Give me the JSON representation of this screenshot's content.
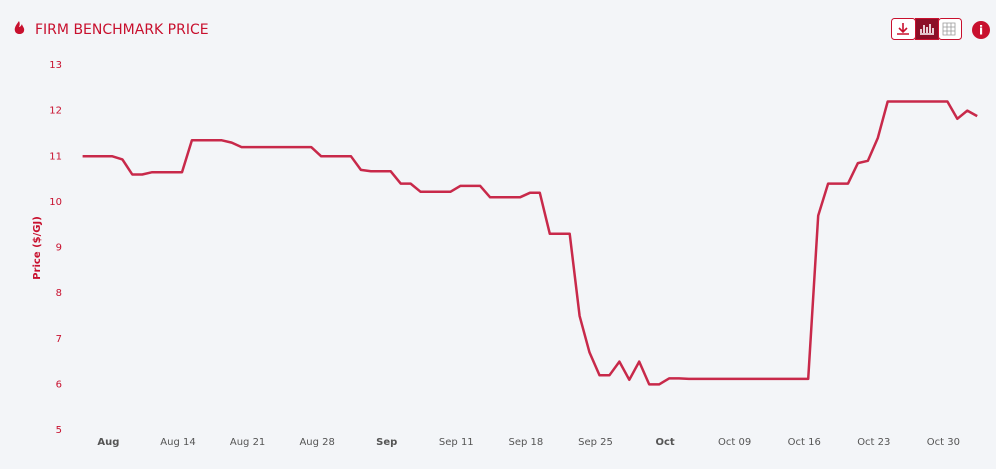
{
  "chart_data": {
    "type": "line",
    "title": "FIRM BENCHMARK PRICE",
    "y_label": "Price ($/GJ)",
    "x": [
      "Aug 4",
      "Aug 5",
      "Aug 6",
      "Aug 7",
      "Aug 8",
      "Aug 9",
      "Aug 10",
      "Aug 11",
      "Aug 12",
      "Aug 13",
      "Aug 14",
      "Aug 15",
      "Aug 16",
      "Aug 17",
      "Aug 18",
      "Aug 19",
      "Aug 20",
      "Aug 21",
      "Aug 22",
      "Aug 23",
      "Aug 24",
      "Aug 25",
      "Aug 26",
      "Aug 27",
      "Aug 28",
      "Aug 29",
      "Aug 30",
      "Aug 31",
      "Sep 1",
      "Sep 2",
      "Sep 3",
      "Sep 4",
      "Sep 5",
      "Sep 6",
      "Sep 7",
      "Sep 8",
      "Sep 9",
      "Sep 10",
      "Sep 11",
      "Sep 12",
      "Sep 13",
      "Sep 14",
      "Sep 15",
      "Sep 16",
      "Sep 17",
      "Sep 18",
      "Sep 19",
      "Sep 20",
      "Sep 21",
      "Sep 22",
      "Sep 23",
      "Sep 24",
      "Sep 25",
      "Sep 26",
      "Sep 27",
      "Sep 28",
      "Sep 29",
      "Sep 30",
      "Oct 1",
      "Oct 2",
      "Oct 3",
      "Oct 4",
      "Oct 5",
      "Oct 6",
      "Oct 7",
      "Oct 8",
      "Oct 9",
      "Oct 10",
      "Oct 11",
      "Oct 12",
      "Oct 13",
      "Oct 14",
      "Oct 15",
      "Oct 16",
      "Oct 17",
      "Oct 18",
      "Oct 19",
      "Oct 20",
      "Oct 21",
      "Oct 22",
      "Oct 23",
      "Oct 24",
      "Oct 25",
      "Oct 26",
      "Oct 27",
      "Oct 28",
      "Oct 29",
      "Oct 30",
      "Oct 31",
      "Nov 1",
      "Nov 2"
    ],
    "series": [
      {
        "name": "Price",
        "color": "#c8294a",
        "values": [
          11.0,
          11.0,
          11.0,
          11.0,
          10.93,
          10.6,
          10.6,
          10.65,
          10.65,
          10.65,
          10.65,
          11.35,
          11.35,
          11.35,
          11.35,
          11.3,
          11.2,
          11.2,
          11.2,
          11.2,
          11.2,
          11.2,
          11.2,
          11.2,
          11.0,
          11.0,
          11.0,
          11.0,
          10.7,
          10.67,
          10.67,
          10.67,
          10.4,
          10.4,
          10.22,
          10.22,
          10.22,
          10.22,
          10.35,
          10.35,
          10.35,
          10.1,
          10.1,
          10.1,
          10.1,
          10.2,
          10.2,
          9.3,
          9.3,
          9.3,
          7.5,
          6.7,
          6.2,
          6.2,
          6.5,
          6.1,
          6.5,
          6.0,
          6.0,
          6.13,
          6.13,
          6.12,
          6.12,
          6.12,
          6.12,
          6.12,
          6.12,
          6.12,
          6.12,
          6.12,
          6.12,
          6.12,
          6.12,
          6.12,
          9.7,
          10.4,
          10.4,
          10.4,
          10.85,
          10.9,
          11.4,
          12.2,
          12.2,
          12.2,
          12.2,
          12.2,
          12.2,
          12.2,
          11.82,
          12.0,
          11.88
        ]
      }
    ],
    "ylim": [
      5,
      13
    ],
    "yticks": [
      5,
      6,
      7,
      8,
      9,
      10,
      11,
      12,
      13
    ],
    "xticks": [
      {
        "value": "Aug 7",
        "label": "Aug"
      },
      "Aug 14",
      "Aug 21",
      "Aug 28",
      {
        "value": "Sep 4",
        "label": "Sep"
      },
      "Sep 11",
      "Sep 18",
      "Sep 25",
      {
        "value": "Oct 2",
        "label": "Oct"
      },
      "Oct 09",
      "Oct 16",
      "Oct 23",
      "Oct 30"
    ],
    "grid": false
  }
}
